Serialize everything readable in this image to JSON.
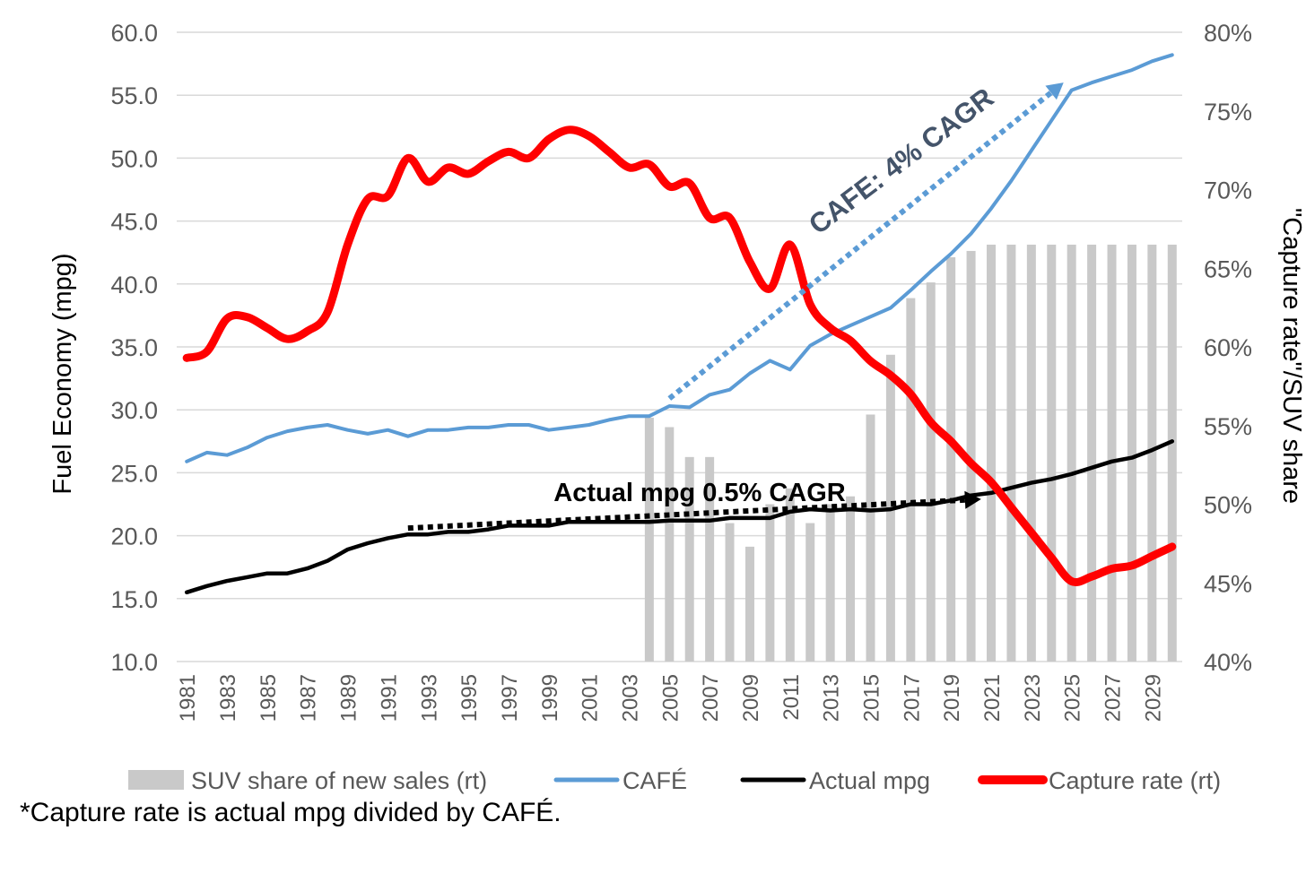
{
  "chart_data": {
    "type": "line",
    "x_years": [
      1981,
      1982,
      1983,
      1984,
      1985,
      1986,
      1987,
      1988,
      1989,
      1990,
      1991,
      1992,
      1993,
      1994,
      1995,
      1996,
      1997,
      1998,
      1999,
      2000,
      2001,
      2002,
      2003,
      2004,
      2005,
      2006,
      2007,
      2008,
      2009,
      2010,
      2011,
      2012,
      2013,
      2014,
      2015,
      2016,
      2017,
      2018,
      2019,
      2020,
      2021,
      2022,
      2023,
      2024,
      2025,
      2026,
      2027,
      2028,
      2029,
      2030
    ],
    "x_tick_labels": [
      "1981",
      "1983",
      "1985",
      "1987",
      "1989",
      "1991",
      "1993",
      "1995",
      "1997",
      "1999",
      "2001",
      "2003",
      "2005",
      "2007",
      "2009",
      "2011",
      "2013",
      "2015",
      "2017",
      "2019",
      "2021",
      "2023",
      "2025",
      "2027",
      "2029"
    ],
    "y_left": {
      "label": "Fuel Economy (mpg)",
      "min": 10,
      "max": 60,
      "ticks": [
        "10.0",
        "15.0",
        "20.0",
        "25.0",
        "30.0",
        "35.0",
        "40.0",
        "45.0",
        "50.0",
        "55.0",
        "60.0"
      ]
    },
    "y_right": {
      "label": "\"Capture rate\"/SUV share",
      "min": 40,
      "max": 80,
      "ticks": [
        "40%",
        "45%",
        "50%",
        "55%",
        "60%",
        "65%",
        "70%",
        "75%",
        "80%"
      ]
    },
    "grid": "horizontal",
    "legend_position": "bottom",
    "series": [
      {
        "name": "SUV share of new sales (rt)",
        "kind": "bar",
        "axis": "right",
        "color": "#c9c9c9",
        "values": [
          null,
          null,
          null,
          null,
          null,
          null,
          null,
          null,
          null,
          null,
          null,
          null,
          null,
          null,
          null,
          null,
          null,
          null,
          null,
          null,
          null,
          null,
          null,
          55.5,
          54.9,
          53.0,
          53.0,
          48.8,
          47.3,
          50.0,
          51.0,
          48.8,
          50.0,
          50.5,
          55.7,
          59.5,
          63.1,
          64.1,
          65.7,
          66.1,
          66.5,
          66.5,
          66.5,
          66.5,
          66.5,
          66.5,
          66.5,
          66.5,
          66.5,
          66.5
        ]
      },
      {
        "name": "CAFÉ",
        "kind": "line",
        "axis": "left",
        "color": "#5b9bd5",
        "values": [
          25.9,
          26.6,
          26.4,
          27.0,
          27.8,
          28.3,
          28.6,
          28.8,
          28.4,
          28.1,
          28.4,
          27.9,
          28.4,
          28.4,
          28.6,
          28.6,
          28.8,
          28.8,
          28.4,
          28.6,
          28.8,
          29.2,
          29.5,
          29.5,
          30.3,
          30.2,
          31.2,
          31.6,
          32.9,
          33.9,
          33.2,
          35.1,
          36.0,
          36.7,
          37.4,
          38.1,
          39.5,
          41.0,
          42.4,
          44.0,
          46.0,
          48.2,
          50.6,
          53.0,
          55.4,
          56.0,
          56.5,
          57.0,
          57.7,
          58.2
        ]
      },
      {
        "name": "Actual mpg",
        "kind": "line",
        "axis": "left",
        "color": "#000000",
        "values": [
          15.5,
          16.0,
          16.4,
          16.7,
          17.0,
          17.0,
          17.4,
          18.0,
          18.9,
          19.4,
          19.8,
          20.1,
          20.1,
          20.3,
          20.3,
          20.5,
          20.8,
          20.8,
          20.8,
          21.1,
          21.1,
          21.1,
          21.1,
          21.1,
          21.2,
          21.2,
          21.2,
          21.4,
          21.4,
          21.4,
          21.9,
          22.1,
          22.0,
          22.1,
          22.0,
          22.1,
          22.5,
          22.5,
          22.8,
          23.2,
          23.4,
          23.8,
          24.2,
          24.5,
          24.9,
          25.4,
          25.9,
          26.2,
          26.8,
          27.5
        ]
      },
      {
        "name": "Capture rate (rt)",
        "kind": "line",
        "axis": "right",
        "color": "#ff0000",
        "values": [
          59.3,
          59.7,
          61.8,
          61.9,
          61.2,
          60.5,
          61.0,
          62.2,
          66.5,
          69.4,
          69.6,
          72.0,
          70.5,
          71.4,
          71.0,
          71.8,
          72.4,
          72.0,
          73.2,
          73.8,
          73.4,
          72.4,
          71.4,
          71.6,
          70.2,
          70.4,
          68.2,
          68.2,
          65.4,
          63.7,
          66.5,
          62.7,
          61.2,
          60.4,
          59.1,
          58.2,
          57.0,
          55.2,
          54.0,
          52.6,
          51.4,
          49.8,
          48.2,
          46.6,
          45.1,
          45.4,
          45.9,
          46.1,
          46.7,
          47.3
        ]
      }
    ],
    "annotations": [
      {
        "text": "CAFE:  4% CAGR",
        "color": "#44546a",
        "from": [
          2005.0,
          30.9
        ],
        "to": [
          2024.6,
          56.0
        ]
      },
      {
        "text": "Actual mpg 0.5% CAGR",
        "color": "#000000",
        "from": [
          1992.0,
          20.6
        ],
        "to": [
          2020.5,
          22.9
        ]
      }
    ]
  },
  "footnote": "*Capture rate is actual mpg divided by CAFÉ."
}
